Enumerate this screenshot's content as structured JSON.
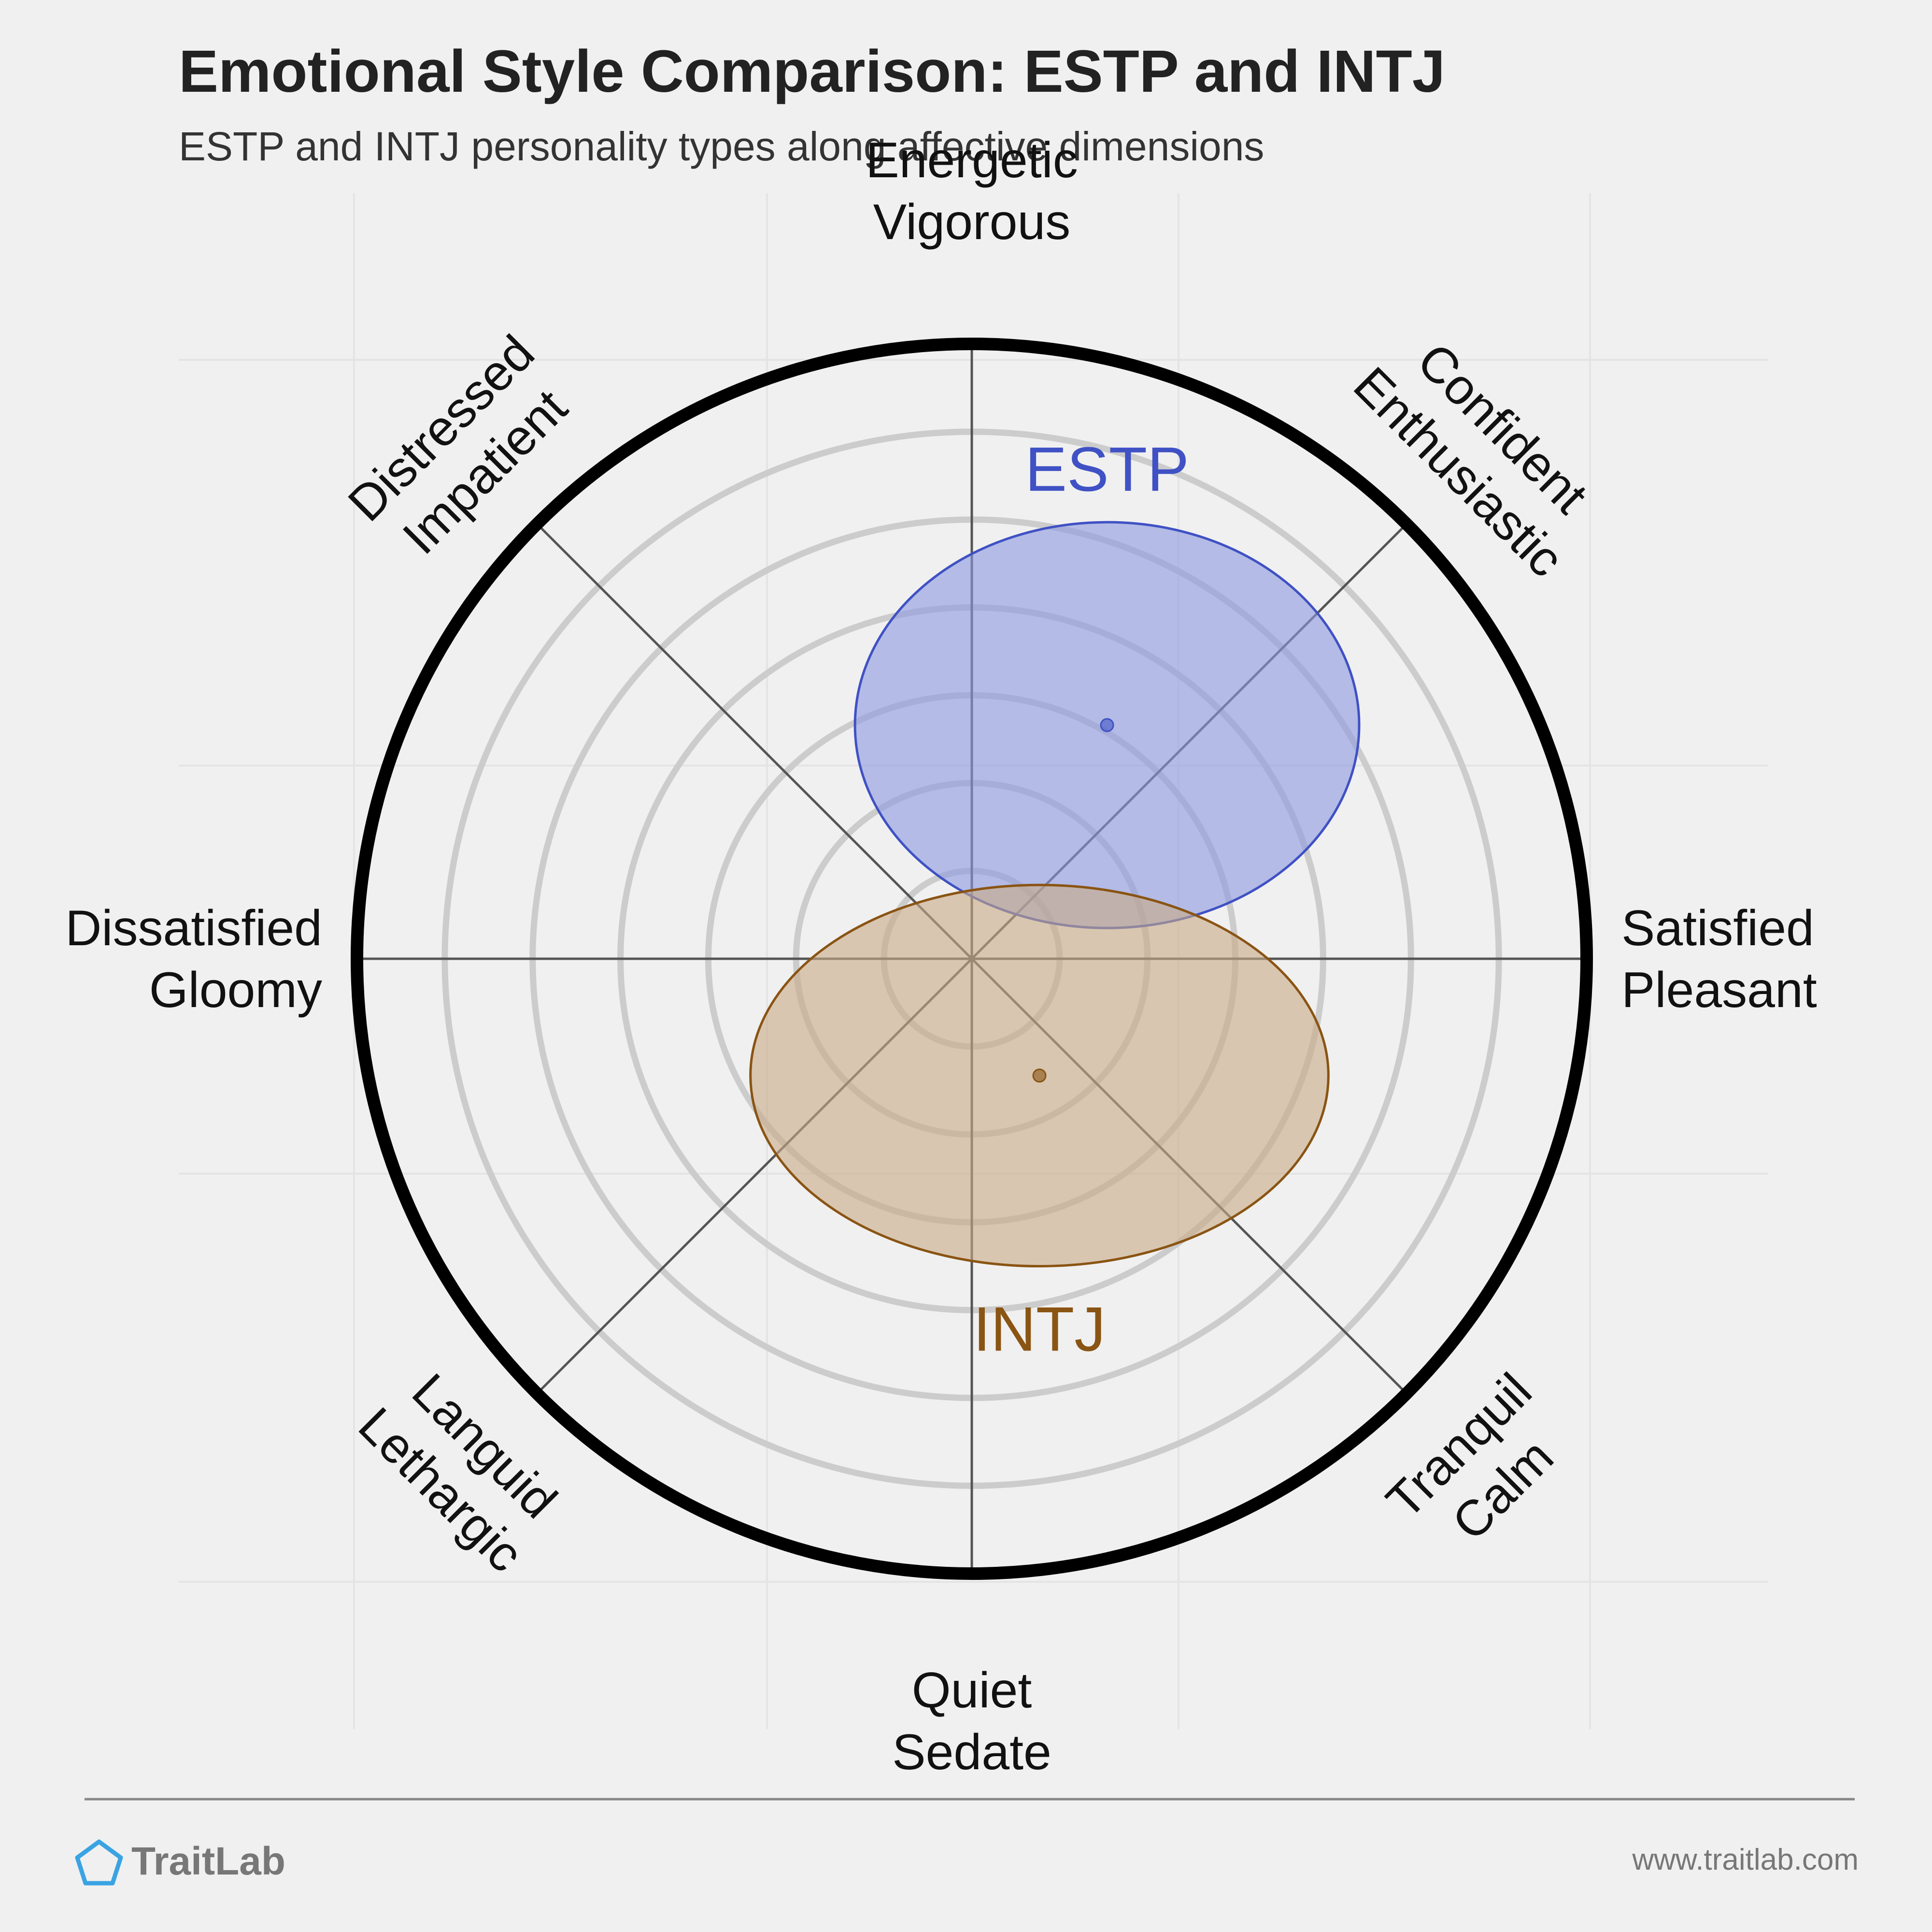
{
  "chart_data": {
    "type": "scatter",
    "chart_kind": "circumplex",
    "title": "Emotional Style Comparison: ESTP and INTJ",
    "subtitle": "ESTP and INTJ personality types along affective dimensions",
    "x_range": [
      -1,
      1
    ],
    "y_range": [
      -1,
      1
    ],
    "rings": 6,
    "grid": true,
    "axes": [
      {
        "angle": 90,
        "lines": [
          "Energetic",
          "Vigorous"
        ]
      },
      {
        "angle": 45,
        "lines": [
          "Confident",
          "Enthusiastic"
        ]
      },
      {
        "angle": 0,
        "lines": [
          "Satisfied",
          "Pleasant"
        ]
      },
      {
        "angle": -45,
        "lines": [
          "Tranquil",
          "Calm"
        ]
      },
      {
        "angle": -90,
        "lines": [
          "Quiet",
          "Sedate"
        ]
      },
      {
        "angle": -135,
        "lines": [
          "Languid",
          "Lethargic"
        ]
      },
      {
        "angle": 180,
        "lines": [
          "Dissatisfied",
          "Gloomy"
        ]
      },
      {
        "angle": 135,
        "lines": [
          "Distressed",
          "Impatient"
        ]
      }
    ],
    "series": [
      {
        "name": "ESTP",
        "x": 0.22,
        "y": 0.38,
        "x_spread": 0.41,
        "y_spread": 0.33,
        "color": "#3f51c4",
        "fill": "#8a97e0"
      },
      {
        "name": "INTJ",
        "x": 0.11,
        "y": -0.19,
        "x_spread": 0.47,
        "y_spread": 0.31,
        "color": "#8a5413",
        "fill": "#c8aa86"
      }
    ]
  },
  "footer": {
    "brand": "TraitLab",
    "url": "www.traitlab.com",
    "brand_color": "#3aa3e3"
  }
}
